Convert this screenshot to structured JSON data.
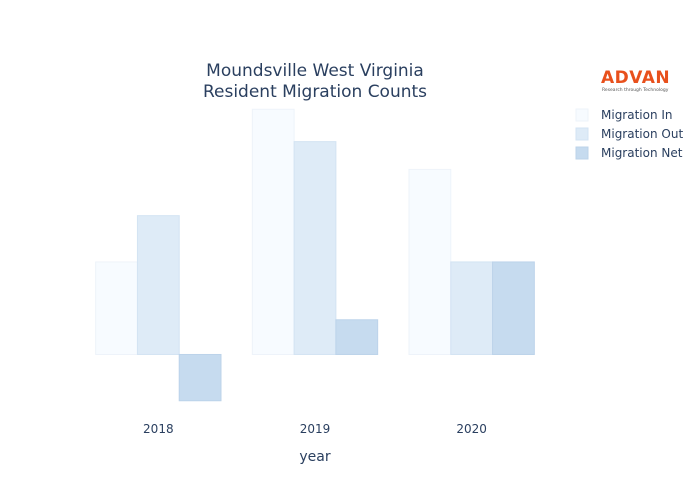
{
  "chart_data": {
    "type": "bar",
    "title_lines": [
      "Moundsville West Virginia",
      "Resident Migration Counts"
    ],
    "xlabel": "year",
    "ylabel": "",
    "categories": [
      "2018",
      "2019",
      "2020"
    ],
    "series": [
      {
        "name": "Migration In",
        "values": [
          20,
          53,
          40
        ],
        "color": "#f7fbff",
        "stroke": "#eef3fa"
      },
      {
        "name": "Migration Out",
        "values": [
          30,
          46,
          20
        ],
        "color": "#deebf7",
        "stroke": "#d3e3f3"
      },
      {
        "name": "Migration Net",
        "values": [
          -10,
          7.5,
          20
        ],
        "color": "#c6dbef",
        "stroke": "#bcd3ea"
      }
    ],
    "ylim": [
      -12,
      55
    ],
    "grid": false,
    "legend": "top-right",
    "y_ticks_visible": false
  },
  "logo": {
    "text": "ADVAN",
    "tagline": "Research through Technology"
  }
}
